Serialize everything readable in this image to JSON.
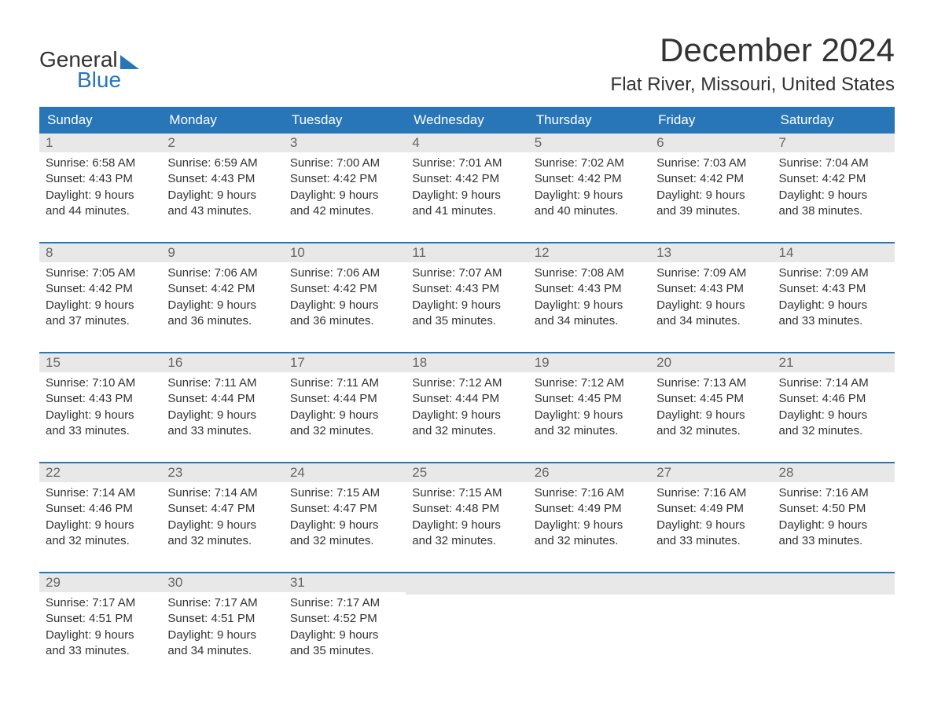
{
  "logo": {
    "text_general": "General",
    "text_blue": "Blue"
  },
  "title": {
    "month": "December 2024",
    "location": "Flat River, Missouri, United States"
  },
  "colors": {
    "header_bg": "#2876b8",
    "header_text": "#ffffff",
    "day_num_bg": "#e8e8e8",
    "day_num_text": "#666666",
    "body_text": "#333333",
    "logo_blue": "#2876b8"
  },
  "day_names": [
    "Sunday",
    "Monday",
    "Tuesday",
    "Wednesday",
    "Thursday",
    "Friday",
    "Saturday"
  ],
  "weeks": [
    [
      {
        "num": "1",
        "sunrise": "Sunrise: 6:58 AM",
        "sunset": "Sunset: 4:43 PM",
        "dl1": "Daylight: 9 hours",
        "dl2": "and 44 minutes."
      },
      {
        "num": "2",
        "sunrise": "Sunrise: 6:59 AM",
        "sunset": "Sunset: 4:43 PM",
        "dl1": "Daylight: 9 hours",
        "dl2": "and 43 minutes."
      },
      {
        "num": "3",
        "sunrise": "Sunrise: 7:00 AM",
        "sunset": "Sunset: 4:42 PM",
        "dl1": "Daylight: 9 hours",
        "dl2": "and 42 minutes."
      },
      {
        "num": "4",
        "sunrise": "Sunrise: 7:01 AM",
        "sunset": "Sunset: 4:42 PM",
        "dl1": "Daylight: 9 hours",
        "dl2": "and 41 minutes."
      },
      {
        "num": "5",
        "sunrise": "Sunrise: 7:02 AM",
        "sunset": "Sunset: 4:42 PM",
        "dl1": "Daylight: 9 hours",
        "dl2": "and 40 minutes."
      },
      {
        "num": "6",
        "sunrise": "Sunrise: 7:03 AM",
        "sunset": "Sunset: 4:42 PM",
        "dl1": "Daylight: 9 hours",
        "dl2": "and 39 minutes."
      },
      {
        "num": "7",
        "sunrise": "Sunrise: 7:04 AM",
        "sunset": "Sunset: 4:42 PM",
        "dl1": "Daylight: 9 hours",
        "dl2": "and 38 minutes."
      }
    ],
    [
      {
        "num": "8",
        "sunrise": "Sunrise: 7:05 AM",
        "sunset": "Sunset: 4:42 PM",
        "dl1": "Daylight: 9 hours",
        "dl2": "and 37 minutes."
      },
      {
        "num": "9",
        "sunrise": "Sunrise: 7:06 AM",
        "sunset": "Sunset: 4:42 PM",
        "dl1": "Daylight: 9 hours",
        "dl2": "and 36 minutes."
      },
      {
        "num": "10",
        "sunrise": "Sunrise: 7:06 AM",
        "sunset": "Sunset: 4:42 PM",
        "dl1": "Daylight: 9 hours",
        "dl2": "and 36 minutes."
      },
      {
        "num": "11",
        "sunrise": "Sunrise: 7:07 AM",
        "sunset": "Sunset: 4:43 PM",
        "dl1": "Daylight: 9 hours",
        "dl2": "and 35 minutes."
      },
      {
        "num": "12",
        "sunrise": "Sunrise: 7:08 AM",
        "sunset": "Sunset: 4:43 PM",
        "dl1": "Daylight: 9 hours",
        "dl2": "and 34 minutes."
      },
      {
        "num": "13",
        "sunrise": "Sunrise: 7:09 AM",
        "sunset": "Sunset: 4:43 PM",
        "dl1": "Daylight: 9 hours",
        "dl2": "and 34 minutes."
      },
      {
        "num": "14",
        "sunrise": "Sunrise: 7:09 AM",
        "sunset": "Sunset: 4:43 PM",
        "dl1": "Daylight: 9 hours",
        "dl2": "and 33 minutes."
      }
    ],
    [
      {
        "num": "15",
        "sunrise": "Sunrise: 7:10 AM",
        "sunset": "Sunset: 4:43 PM",
        "dl1": "Daylight: 9 hours",
        "dl2": "and 33 minutes."
      },
      {
        "num": "16",
        "sunrise": "Sunrise: 7:11 AM",
        "sunset": "Sunset: 4:44 PM",
        "dl1": "Daylight: 9 hours",
        "dl2": "and 33 minutes."
      },
      {
        "num": "17",
        "sunrise": "Sunrise: 7:11 AM",
        "sunset": "Sunset: 4:44 PM",
        "dl1": "Daylight: 9 hours",
        "dl2": "and 32 minutes."
      },
      {
        "num": "18",
        "sunrise": "Sunrise: 7:12 AM",
        "sunset": "Sunset: 4:44 PM",
        "dl1": "Daylight: 9 hours",
        "dl2": "and 32 minutes."
      },
      {
        "num": "19",
        "sunrise": "Sunrise: 7:12 AM",
        "sunset": "Sunset: 4:45 PM",
        "dl1": "Daylight: 9 hours",
        "dl2": "and 32 minutes."
      },
      {
        "num": "20",
        "sunrise": "Sunrise: 7:13 AM",
        "sunset": "Sunset: 4:45 PM",
        "dl1": "Daylight: 9 hours",
        "dl2": "and 32 minutes."
      },
      {
        "num": "21",
        "sunrise": "Sunrise: 7:14 AM",
        "sunset": "Sunset: 4:46 PM",
        "dl1": "Daylight: 9 hours",
        "dl2": "and 32 minutes."
      }
    ],
    [
      {
        "num": "22",
        "sunrise": "Sunrise: 7:14 AM",
        "sunset": "Sunset: 4:46 PM",
        "dl1": "Daylight: 9 hours",
        "dl2": "and 32 minutes."
      },
      {
        "num": "23",
        "sunrise": "Sunrise: 7:14 AM",
        "sunset": "Sunset: 4:47 PM",
        "dl1": "Daylight: 9 hours",
        "dl2": "and 32 minutes."
      },
      {
        "num": "24",
        "sunrise": "Sunrise: 7:15 AM",
        "sunset": "Sunset: 4:47 PM",
        "dl1": "Daylight: 9 hours",
        "dl2": "and 32 minutes."
      },
      {
        "num": "25",
        "sunrise": "Sunrise: 7:15 AM",
        "sunset": "Sunset: 4:48 PM",
        "dl1": "Daylight: 9 hours",
        "dl2": "and 32 minutes."
      },
      {
        "num": "26",
        "sunrise": "Sunrise: 7:16 AM",
        "sunset": "Sunset: 4:49 PM",
        "dl1": "Daylight: 9 hours",
        "dl2": "and 32 minutes."
      },
      {
        "num": "27",
        "sunrise": "Sunrise: 7:16 AM",
        "sunset": "Sunset: 4:49 PM",
        "dl1": "Daylight: 9 hours",
        "dl2": "and 33 minutes."
      },
      {
        "num": "28",
        "sunrise": "Sunrise: 7:16 AM",
        "sunset": "Sunset: 4:50 PM",
        "dl1": "Daylight: 9 hours",
        "dl2": "and 33 minutes."
      }
    ],
    [
      {
        "num": "29",
        "sunrise": "Sunrise: 7:17 AM",
        "sunset": "Sunset: 4:51 PM",
        "dl1": "Daylight: 9 hours",
        "dl2": "and 33 minutes."
      },
      {
        "num": "30",
        "sunrise": "Sunrise: 7:17 AM",
        "sunset": "Sunset: 4:51 PM",
        "dl1": "Daylight: 9 hours",
        "dl2": "and 34 minutes."
      },
      {
        "num": "31",
        "sunrise": "Sunrise: 7:17 AM",
        "sunset": "Sunset: 4:52 PM",
        "dl1": "Daylight: 9 hours",
        "dl2": "and 35 minutes."
      },
      null,
      null,
      null,
      null
    ]
  ]
}
